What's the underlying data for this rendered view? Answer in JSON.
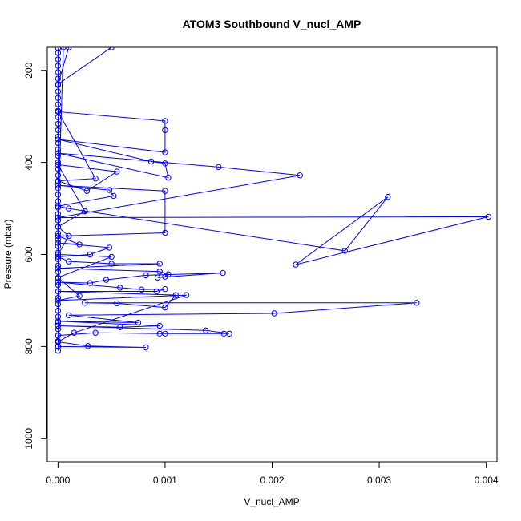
{
  "chart_data": {
    "type": "line",
    "title": "ATOM3 Southbound V_nucl_AMP",
    "xlabel": "V_nucl_AMP",
    "ylabel": "Pressure (mbar)",
    "xlim": [
      -0.0001,
      0.0041
    ],
    "ylim": [
      1050,
      150
    ],
    "y_reversed": true,
    "x_ticks": [
      0.0,
      0.001,
      0.002,
      0.003,
      0.004
    ],
    "x_tick_labels": [
      "0.000",
      "0.001",
      "0.002",
      "0.003",
      "0.004"
    ],
    "y_ticks": [
      200,
      400,
      600,
      800,
      1000
    ],
    "y_tick_labels": [
      "200",
      "400",
      "600",
      "800",
      "1000"
    ],
    "grid": false,
    "line_color": "#0000ff",
    "series": [
      {
        "points": [
          [
            0.0,
            809
          ],
          [
            0.0,
            800
          ],
          [
            0.0,
            788
          ],
          [
            0.0,
            776
          ],
          [
            0.0,
            762
          ],
          [
            0.0,
            748
          ],
          [
            0.0,
            735
          ],
          [
            0.0,
            722
          ],
          [
            0.0,
            708
          ],
          [
            0.0,
            694
          ],
          [
            0.0,
            680
          ],
          [
            0.0,
            666
          ],
          [
            0.0,
            652
          ],
          [
            0.0,
            638
          ],
          [
            0.0,
            624
          ],
          [
            0.0,
            610
          ],
          [
            0.0,
            596
          ],
          [
            0.0,
            582
          ],
          [
            0.0,
            568
          ],
          [
            0.0,
            554
          ],
          [
            0.0,
            540
          ],
          [
            0.0,
            526
          ],
          [
            0.0,
            512
          ],
          [
            0.0,
            498
          ],
          [
            0.0,
            484
          ],
          [
            0.0,
            470
          ],
          [
            0.0,
            456
          ],
          [
            0.0,
            442
          ],
          [
            0.0,
            428
          ],
          [
            0.0,
            414
          ],
          [
            0.0,
            400
          ],
          [
            0.0,
            386
          ],
          [
            0.0,
            372
          ],
          [
            0.0,
            358
          ],
          [
            0.0,
            344
          ],
          [
            0.0,
            330
          ],
          [
            0.0,
            316
          ],
          [
            0.0,
            302
          ],
          [
            0.0,
            288
          ],
          [
            0.0,
            274
          ],
          [
            0.0,
            260
          ],
          [
            0.0,
            246
          ],
          [
            0.0,
            232
          ],
          [
            0.0,
            218
          ],
          [
            0.0,
            204
          ],
          [
            0.0,
            190
          ],
          [
            0.0,
            176
          ],
          [
            0.0,
            162
          ],
          [
            0.0,
            152
          ]
        ]
      },
      {
        "points": [
          [
            0.0,
            800
          ],
          [
            0.00082,
            802
          ],
          [
            0.00028,
            799
          ],
          [
            0.0,
            790
          ],
          [
            0.0,
            776
          ],
          [
            0.00035,
            770
          ],
          [
            0.00095,
            772
          ],
          [
            0.001,
            772
          ],
          [
            0.00155,
            772
          ],
          [
            0.0016,
            772
          ],
          [
            0.00138,
            765
          ],
          [
            0.0,
            755
          ],
          [
            0.00058,
            758
          ],
          [
            0.00095,
            755
          ],
          [
            0.0,
            745
          ],
          [
            0.00075,
            748
          ],
          [
            0.0001,
            732
          ],
          [
            0.00202,
            728
          ],
          [
            0.00335,
            705
          ],
          [
            0.00025,
            705
          ],
          [
            0.00055,
            706
          ],
          [
            0.001,
            715
          ],
          [
            0.0011,
            688
          ],
          [
            0.0,
            680
          ],
          [
            0.00092,
            680
          ],
          [
            0.001,
            675
          ],
          [
            0.00078,
            676
          ],
          [
            0.00058,
            672
          ],
          [
            0.0,
            660
          ],
          [
            0.0003,
            662
          ],
          [
            0.00045,
            655
          ],
          [
            0.00082,
            645
          ],
          [
            0.00154,
            640
          ],
          [
            0.00093,
            650
          ],
          [
            0.001,
            648
          ],
          [
            0.00103,
            643
          ],
          [
            0.00095,
            637
          ],
          [
            0.0,
            630
          ],
          [
            0.00095,
            620
          ],
          [
            0.0005,
            620
          ],
          [
            0.0001,
            615
          ],
          [
            0.0,
            605
          ],
          [
            0.0003,
            600
          ],
          [
            0.00048,
            585
          ],
          [
            0.0,
            575
          ],
          [
            0.0002,
            578
          ],
          [
            0.0,
            560
          ],
          [
            0.001,
            553
          ],
          [
            0.001,
            462
          ],
          [
            0.0,
            450
          ],
          [
            0.00048,
            460
          ],
          [
            0.00052,
            473
          ],
          [
            0.0,
            495
          ],
          [
            0.0001,
            500
          ],
          [
            0.00268,
            592
          ],
          [
            0.00308,
            475
          ],
          [
            0.00222,
            622
          ],
          [
            0.00402,
            518
          ],
          [
            0.0,
            520
          ],
          [
            0.00226,
            428
          ],
          [
            0.0015,
            410
          ],
          [
            0.0,
            380
          ],
          [
            0.00103,
            433
          ],
          [
            0.001,
            402
          ],
          [
            0.00087,
            398
          ],
          [
            0.0,
            350
          ],
          [
            0.001,
            378
          ],
          [
            0.001,
            330
          ],
          [
            0.001,
            310
          ],
          [
            0.0,
            290
          ],
          [
            0.00035,
            435
          ],
          [
            0.0,
            440
          ],
          [
            0.00027,
            462
          ],
          [
            0.00055,
            420
          ],
          [
            0.0,
            405
          ],
          [
            0.00025,
            506
          ],
          [
            0.0,
            540
          ],
          [
            0.0001,
            560
          ],
          [
            0.0,
            600
          ],
          [
            0.0005,
            605
          ],
          [
            0.0,
            650
          ],
          [
            0.0002,
            690
          ],
          [
            0.0,
            700
          ],
          [
            0.0012,
            688
          ],
          [
            0.00015,
            770
          ],
          [
            0.0,
            790
          ]
        ]
      },
      {
        "points": [
          [
            0.0,
            600
          ],
          [
            0.0,
            520
          ],
          [
            5e-05,
            150
          ],
          [
            0.0001,
            150
          ],
          [
            0.0,
            230
          ],
          [
            0.0005,
            150
          ]
        ]
      }
    ]
  }
}
